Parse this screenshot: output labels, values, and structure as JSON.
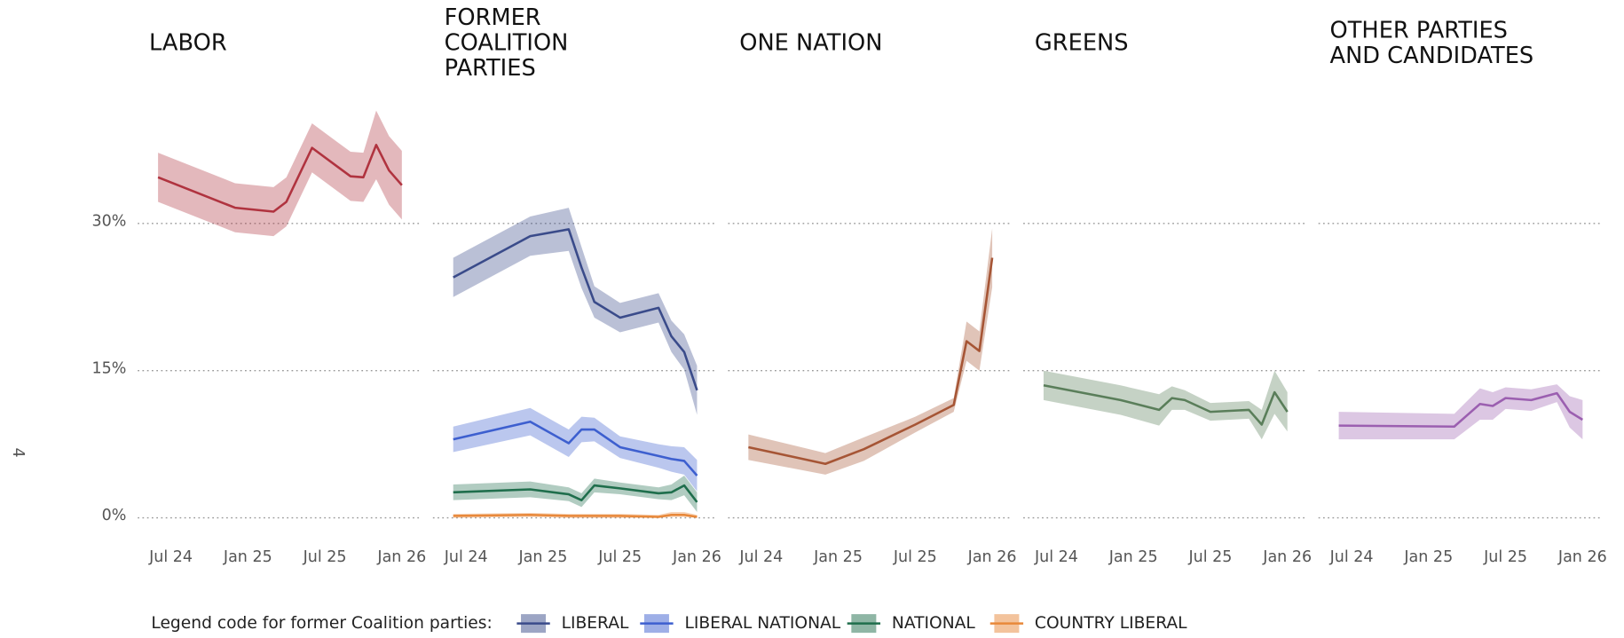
{
  "side_label": "4",
  "chart_data": [
    {
      "type": "line",
      "title": [
        "LABOR"
      ],
      "grid": true,
      "show_ytick_labels": true,
      "xlim": [
        "2024-06",
        "2026-01"
      ],
      "ylim": [
        0,
        42
      ],
      "xticks": [
        {
          "value": "2024-07",
          "label": "Jul 24"
        },
        {
          "value": "2025-01",
          "label": "Jan 25"
        },
        {
          "value": "2025-07",
          "label": "Jul 25"
        },
        {
          "value": "2026-01",
          "label": "Jan 26"
        }
      ],
      "yticks": [
        {
          "value": 0,
          "label": "0%"
        },
        {
          "value": 15,
          "label": "15%"
        },
        {
          "value": 30,
          "label": "30%"
        }
      ],
      "x": [
        "2024-06",
        "2024-12",
        "2025-03",
        "2025-04",
        "2025-06",
        "2025-09",
        "2025-10",
        "2025-11",
        "2025-12",
        "2026-01"
      ],
      "series": [
        {
          "color": "#b0333f",
          "values": [
            34.7,
            31.6,
            31.2,
            32.2,
            37.7,
            34.8,
            34.7,
            38.0,
            35.4,
            33.9
          ],
          "upper": [
            37.2,
            34.1,
            33.7,
            34.7,
            40.2,
            37.3,
            37.2,
            41.5,
            38.9,
            37.4
          ],
          "lower": [
            32.2,
            29.1,
            28.7,
            29.7,
            35.2,
            32.3,
            32.2,
            34.5,
            31.9,
            30.4
          ]
        }
      ]
    },
    {
      "type": "line",
      "title": [
        "FORMER",
        "COALITION",
        "PARTIES"
      ],
      "grid": true,
      "show_ytick_labels": false,
      "legend_title": "Legend code for former Coalition parties:",
      "xlim": [
        "2024-06",
        "2026-01"
      ],
      "ylim": [
        0,
        42
      ],
      "xticks": [
        {
          "value": "2024-07",
          "label": "Jul 24"
        },
        {
          "value": "2025-01",
          "label": "Jan 25"
        },
        {
          "value": "2025-07",
          "label": "Jul 25"
        },
        {
          "value": "2026-01",
          "label": "Jan 26"
        }
      ],
      "yticks": [
        {
          "value": 0,
          "label": "0%"
        },
        {
          "value": 15,
          "label": "15%"
        },
        {
          "value": 30,
          "label": "30%"
        }
      ],
      "x": [
        "2024-06",
        "2024-12",
        "2025-03",
        "2025-04",
        "2025-05",
        "2025-07",
        "2025-10",
        "2025-11",
        "2025-12",
        "2026-01"
      ],
      "series": [
        {
          "name": "LIBERAL",
          "color": "#3a4b8a",
          "values": [
            24.5,
            28.7,
            29.4,
            25.5,
            22.0,
            20.4,
            21.4,
            18.5,
            16.9,
            13.0
          ],
          "upper": [
            26.5,
            30.7,
            31.6,
            27.6,
            23.6,
            21.9,
            22.9,
            20.1,
            18.7,
            15.5
          ],
          "lower": [
            22.5,
            26.7,
            27.2,
            23.4,
            20.4,
            18.9,
            19.9,
            16.9,
            15.1,
            10.5
          ]
        },
        {
          "name": "LIBERAL NATIONAL",
          "color": "#3d5fcf",
          "values": [
            8.0,
            9.8,
            7.6,
            9.0,
            9.0,
            7.2,
            6.3,
            6.0,
            5.8,
            4.3
          ],
          "upper": [
            9.3,
            11.2,
            9.0,
            10.3,
            10.2,
            8.3,
            7.5,
            7.3,
            7.2,
            5.9
          ],
          "lower": [
            6.7,
            8.4,
            6.2,
            7.7,
            7.8,
            6.1,
            5.1,
            4.7,
            4.4,
            2.7
          ]
        },
        {
          "name": "NATIONAL",
          "color": "#1f6e4c",
          "values": [
            2.6,
            2.9,
            2.4,
            1.8,
            3.3,
            3.0,
            2.5,
            2.6,
            3.3,
            1.6
          ],
          "upper": [
            3.4,
            3.7,
            3.1,
            2.5,
            4.0,
            3.6,
            3.1,
            3.4,
            4.3,
            2.6
          ],
          "lower": [
            1.8,
            2.1,
            1.7,
            1.1,
            2.6,
            2.4,
            1.9,
            1.8,
            2.3,
            0.6
          ]
        },
        {
          "name": "COUNTRY LIBERAL",
          "color": "#e8883a",
          "values": [
            0.2,
            0.3,
            0.2,
            0.2,
            0.2,
            0.2,
            0.1,
            0.3,
            0.3,
            0.1
          ],
          "upper": [
            0.4,
            0.5,
            0.4,
            0.4,
            0.4,
            0.4,
            0.3,
            0.6,
            0.6,
            0.3
          ],
          "lower": [
            0.0,
            0.1,
            0.0,
            0.0,
            0.0,
            0.0,
            0.0,
            0.1,
            0.1,
            0.0
          ]
        }
      ]
    },
    {
      "type": "line",
      "title": [
        "ONE NATION"
      ],
      "grid": true,
      "show_ytick_labels": false,
      "xlim": [
        "2024-06",
        "2026-01"
      ],
      "ylim": [
        0,
        42
      ],
      "xticks": [
        {
          "value": "2024-07",
          "label": "Jul 24"
        },
        {
          "value": "2025-01",
          "label": "Jan 25"
        },
        {
          "value": "2025-07",
          "label": "Jul 25"
        },
        {
          "value": "2026-01",
          "label": "Jan 26"
        }
      ],
      "yticks": [
        {
          "value": 0,
          "label": "0%"
        },
        {
          "value": 15,
          "label": "15%"
        },
        {
          "value": 30,
          "label": "30%"
        }
      ],
      "x": [
        "2024-06",
        "2024-12",
        "2025-03",
        "2025-07",
        "2025-10",
        "2025-11",
        "2025-12",
        "2026-01"
      ],
      "series": [
        {
          "color": "#a65535",
          "values": [
            7.2,
            5.5,
            7.0,
            9.5,
            11.5,
            18.0,
            17.0,
            26.5
          ],
          "upper": [
            8.5,
            6.6,
            8.2,
            10.3,
            12.2,
            20.0,
            19.0,
            29.5
          ],
          "lower": [
            5.9,
            4.4,
            5.8,
            8.7,
            10.8,
            16.0,
            15.0,
            23.5
          ]
        }
      ]
    },
    {
      "type": "line",
      "title": [
        "GREENS"
      ],
      "grid": true,
      "show_ytick_labels": false,
      "xlim": [
        "2024-06",
        "2026-01"
      ],
      "ylim": [
        0,
        42
      ],
      "xticks": [
        {
          "value": "2024-07",
          "label": "Jul 24"
        },
        {
          "value": "2025-01",
          "label": "Jan 25"
        },
        {
          "value": "2025-07",
          "label": "Jul 25"
        },
        {
          "value": "2026-01",
          "label": "Jan 26"
        }
      ],
      "yticks": [
        {
          "value": 0,
          "label": "0%"
        },
        {
          "value": 15,
          "label": "15%"
        },
        {
          "value": 30,
          "label": "30%"
        }
      ],
      "x": [
        "2024-06",
        "2024-12",
        "2025-03",
        "2025-04",
        "2025-05",
        "2025-07",
        "2025-10",
        "2025-11",
        "2025-12",
        "2026-01"
      ],
      "series": [
        {
          "color": "#5a7e5a",
          "values": [
            13.5,
            12.0,
            11.0,
            12.2,
            12.0,
            10.8,
            11.0,
            9.5,
            12.8,
            10.8
          ],
          "upper": [
            15.0,
            13.5,
            12.6,
            13.4,
            13.0,
            11.7,
            11.9,
            11.0,
            15.0,
            12.8
          ],
          "lower": [
            12.0,
            10.5,
            9.4,
            11.0,
            11.0,
            9.9,
            10.1,
            8.0,
            10.6,
            8.8
          ]
        }
      ]
    },
    {
      "type": "line",
      "title": [
        "OTHER PARTIES",
        "AND CANDIDATES"
      ],
      "grid": true,
      "show_ytick_labels": false,
      "xlim": [
        "2024-06",
        "2026-01"
      ],
      "ylim": [
        0,
        42
      ],
      "xticks": [
        {
          "value": "2024-07",
          "label": "Jul 24"
        },
        {
          "value": "2025-01",
          "label": "Jan 25"
        },
        {
          "value": "2025-07",
          "label": "Jul 25"
        },
        {
          "value": "2026-01",
          "label": "Jan 26"
        }
      ],
      "yticks": [
        {
          "value": 0,
          "label": "0%"
        },
        {
          "value": 15,
          "label": "15%"
        },
        {
          "value": 30,
          "label": "30%"
        }
      ],
      "x": [
        "2024-06",
        "2025-03",
        "2025-05",
        "2025-06",
        "2025-07",
        "2025-09",
        "2025-11",
        "2025-12",
        "2026-01"
      ],
      "series": [
        {
          "color": "#9b5fb0",
          "values": [
            9.4,
            9.3,
            11.6,
            11.4,
            12.2,
            12.0,
            12.7,
            10.8,
            10.0
          ],
          "upper": [
            10.8,
            10.6,
            13.2,
            12.8,
            13.3,
            13.1,
            13.6,
            12.4,
            12.0
          ],
          "lower": [
            8.0,
            8.0,
            10.0,
            10.0,
            11.1,
            10.9,
            11.8,
            9.2,
            8.0
          ]
        }
      ]
    }
  ]
}
